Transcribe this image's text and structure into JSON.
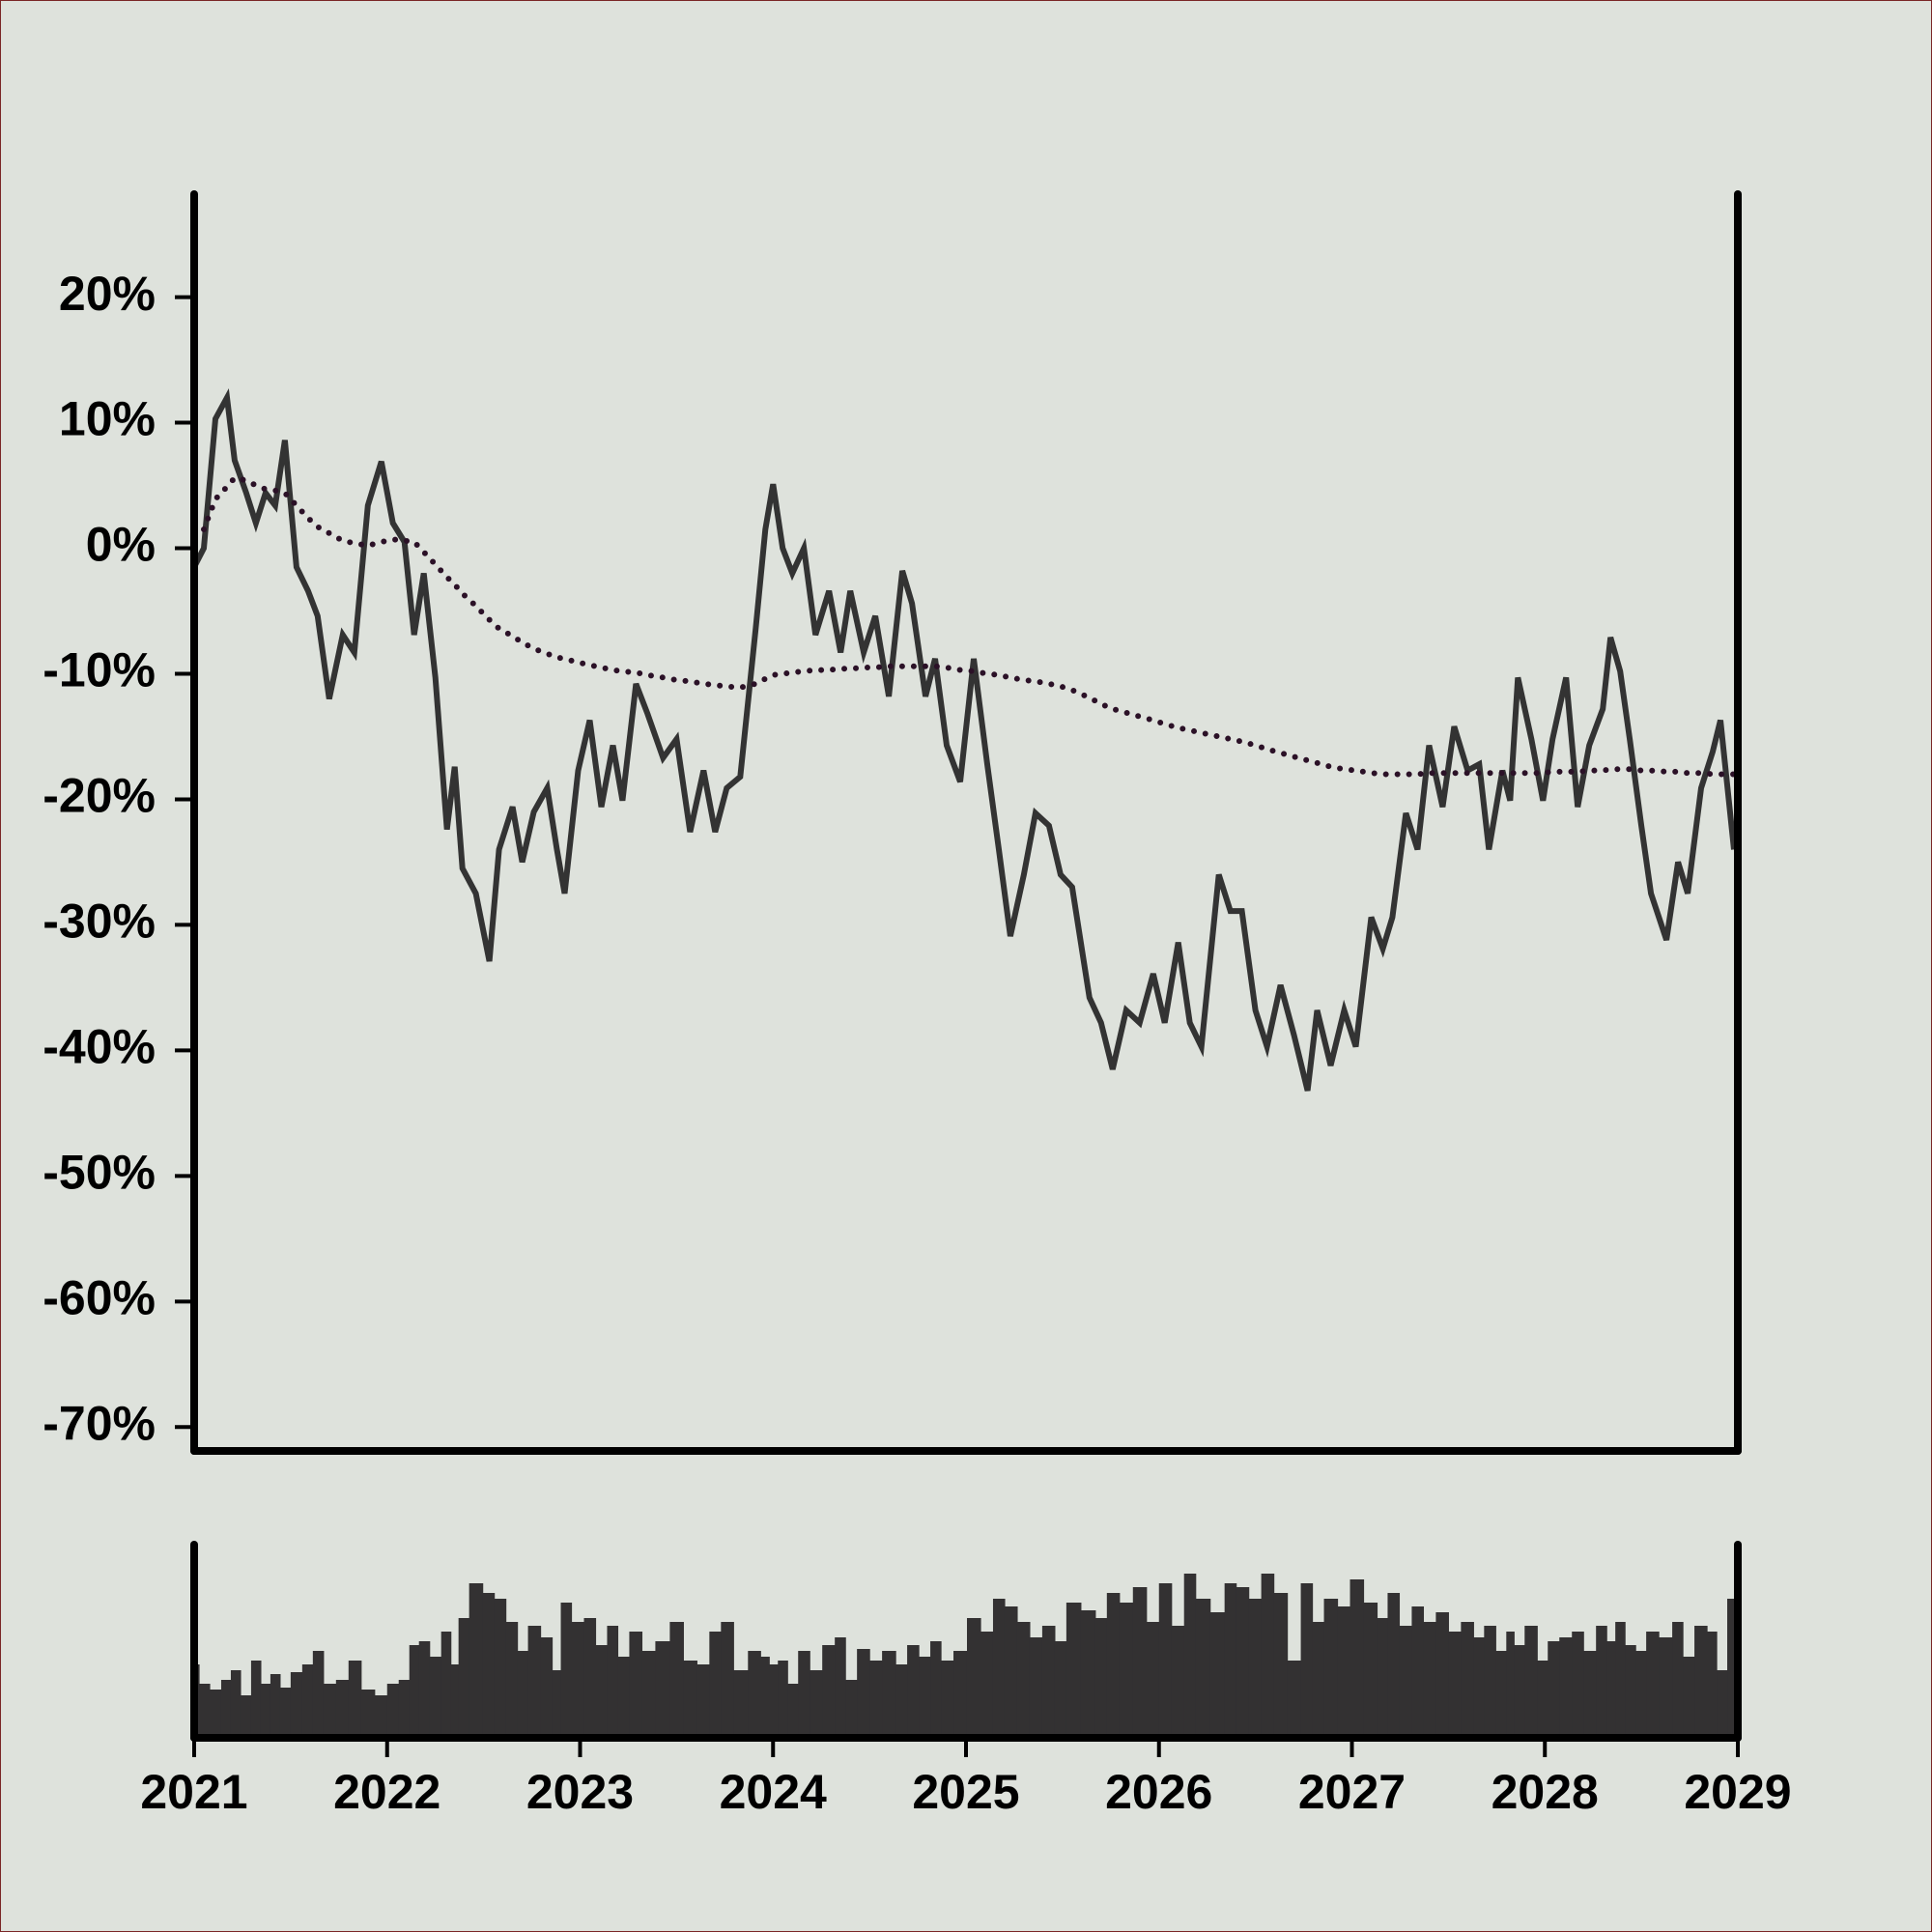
{
  "chart_data": [
    {
      "type": "line",
      "x": [
        2021.0,
        2021.05,
        2021.11,
        2021.17,
        2021.21,
        2021.27,
        2021.32,
        2021.37,
        2021.42,
        2021.47,
        2021.53,
        2021.59,
        2021.64,
        2021.7,
        2021.77,
        2021.83,
        2021.9,
        2021.97,
        2022.03,
        2022.09,
        2022.14,
        2022.19,
        2022.25,
        2022.31,
        2022.35,
        2022.39,
        2022.46,
        2022.53,
        2022.58,
        2022.65,
        2022.7,
        2022.76,
        2022.83,
        2022.88,
        2022.92,
        2022.99,
        2023.05,
        2023.11,
        2023.17,
        2023.22,
        2023.29,
        2023.35,
        2023.43,
        2023.5,
        2023.57,
        2023.64,
        2023.7,
        2023.76,
        2023.83,
        2023.91,
        2023.96,
        2024.0,
        2024.05,
        2024.1,
        2024.16,
        2024.22,
        2024.29,
        2024.35,
        2024.4,
        2024.47,
        2024.53,
        2024.6,
        2024.67,
        2024.72,
        2024.79,
        2024.84,
        2024.9,
        2024.97,
        2025.04,
        2025.11,
        2025.17,
        2025.23,
        2025.3,
        2025.36,
        2025.43,
        2025.49,
        2025.55,
        2025.64,
        2025.7,
        2025.76,
        2025.83,
        2025.9,
        2025.97,
        2026.03,
        2026.1,
        2026.16,
        2026.22,
        2026.31,
        2026.37,
        2026.43,
        2026.5,
        2026.56,
        2026.63,
        2026.7,
        2026.77,
        2026.82,
        2026.89,
        2026.96,
        2027.02,
        2027.1,
        2027.16,
        2027.21,
        2027.28,
        2027.34,
        2027.4,
        2027.47,
        2027.53,
        2027.6,
        2027.66,
        2027.71,
        2027.78,
        2027.82,
        2027.86,
        2027.93,
        2027.99,
        2028.04,
        2028.11,
        2028.17,
        2028.23,
        2028.3,
        2028.34,
        2028.39,
        2028.44,
        2028.5,
        2028.55,
        2028.63,
        2028.69,
        2028.74,
        2028.81,
        2028.87,
        2028.91,
        2028.98
      ],
      "series": [
        {
          "color": "#333333",
          "style": "solid",
          "values": [
            -1.5,
            0,
            10.3,
            12,
            7,
            4.4,
            2,
            4.4,
            3.4,
            8.6,
            -1.5,
            -3.4,
            -5.4,
            -12,
            -6.9,
            -8.3,
            3.4,
            6.9,
            2,
            0.5,
            -6.9,
            -2,
            -10.3,
            -22.4,
            -17.4,
            -25.5,
            -27.5,
            -32.9,
            -24,
            -20.6,
            -25,
            -21,
            -19.1,
            -24,
            -27.5,
            -17.7,
            -13.7,
            -20.6,
            -15.7,
            -20.1,
            -10.8,
            -13.2,
            -16.7,
            -15.2,
            -22.6,
            -17.7,
            -22.6,
            -19.1,
            -18.2,
            -6.4,
            1.5,
            5.1,
            0,
            -2,
            0,
            -6.9,
            -3.4,
            -8.3,
            -3.4,
            -8.3,
            -5.4,
            -11.8,
            -1.8,
            -4.4,
            -11.8,
            -8.8,
            -15.7,
            -18.6,
            -8.8,
            -17.2,
            -24,
            -30.9,
            -26,
            -21.1,
            -22.1,
            -26,
            -27,
            -35.8,
            -37.8,
            -41.5,
            -36.8,
            -37.8,
            -33.9,
            -37.8,
            -31.4,
            -37.8,
            -39.7,
            -26,
            -28.9,
            -28.9,
            -36.8,
            -39.7,
            -34.8,
            -38.8,
            -43.2,
            -36.8,
            -41.2,
            -36.8,
            -39.7,
            -29.4,
            -31.9,
            -29.4,
            -21.1,
            -24,
            -15.7,
            -20.6,
            -14.2,
            -17.7,
            -17.2,
            -24,
            -17.7,
            -20.1,
            -10.3,
            -15.2,
            -20.1,
            -15.2,
            -10.3,
            -20.6,
            -15.7,
            -12.8,
            -7.1,
            -9.8,
            -15.2,
            -22.1,
            -27.5,
            -31.2,
            -25,
            -27.5,
            -19.1,
            -16.2,
            -13.7,
            -24
          ]
        },
        {
          "color": "#2b1127",
          "style": "dotted",
          "values": [
            null,
            1.5,
            3.9,
            4.9,
            5.6,
            5.4,
            5.0,
            4.7,
            4.6,
            4.4,
            3.4,
            2.4,
            1.7,
            1.2,
            0.6,
            0.4,
            0.2,
            0.5,
            0.7,
            0.6,
            0.5,
            -0.3,
            -1.3,
            -2.3,
            -2.9,
            -3.6,
            -4.6,
            -5.7,
            -6.4,
            -7.0,
            -7.5,
            -8.0,
            -8.4,
            -8.7,
            -8.8,
            -9.1,
            -9.3,
            -9.5,
            -9.7,
            -9.8,
            -9.9,
            -10.1,
            -10.3,
            -10.5,
            -10.6,
            -10.8,
            -10.9,
            -11.0,
            -11.1,
            -10.8,
            -10.4,
            -10.1,
            -10.0,
            -9.9,
            -9.8,
            -9.7,
            -9.7,
            -9.6,
            -9.6,
            -9.5,
            -9.5,
            -9.4,
            -9.4,
            -9.4,
            -9.4,
            -9.4,
            -9.5,
            -9.7,
            -9.8,
            -10.0,
            -10.1,
            -10.3,
            -10.5,
            -10.6,
            -10.8,
            -11.0,
            -11.3,
            -11.9,
            -12.4,
            -12.8,
            -13.1,
            -13.4,
            -13.7,
            -14.0,
            -14.3,
            -14.5,
            -14.7,
            -15.0,
            -15.2,
            -15.4,
            -15.7,
            -16.0,
            -16.3,
            -16.6,
            -16.9,
            -17.1,
            -17.4,
            -17.6,
            -17.7,
            -17.9,
            -18.0,
            -18.0,
            -18.0,
            -18.0,
            -17.9,
            -17.9,
            -17.9,
            -17.9,
            -17.9,
            -17.9,
            -17.9,
            -17.9,
            -17.9,
            -17.9,
            -17.9,
            -17.8,
            -17.8,
            -17.8,
            -17.7,
            -17.7,
            -17.6,
            -17.6,
            -17.6,
            -17.7,
            -17.7,
            -17.8,
            -17.8,
            -17.9,
            -17.9,
            -18.0,
            -18.0,
            -18.0
          ]
        }
      ],
      "xlim": [
        2021,
        2029
      ],
      "ylim": [
        -71.9,
        28.2
      ],
      "yticks": [
        {
          "value": 20,
          "label": "20%"
        },
        {
          "value": 10,
          "label": "10%"
        },
        {
          "value": 0,
          "label": "0%"
        },
        {
          "value": -10,
          "label": "-10%"
        },
        {
          "value": -20,
          "label": "-20%"
        },
        {
          "value": -30,
          "label": "-30%"
        },
        {
          "value": -40,
          "label": "-40%"
        },
        {
          "value": -50,
          "label": "-50%"
        },
        {
          "value": -60,
          "label": "-60%"
        },
        {
          "value": -70,
          "label": "-70%"
        }
      ],
      "grid": false
    },
    {
      "type": "bar",
      "x": [
        2021.0,
        2021.05,
        2021.11,
        2021.17,
        2021.21,
        2021.27,
        2021.32,
        2021.37,
        2021.42,
        2021.47,
        2021.53,
        2021.59,
        2021.64,
        2021.7,
        2021.77,
        2021.83,
        2021.9,
        2021.97,
        2022.03,
        2022.09,
        2022.14,
        2022.19,
        2022.25,
        2022.31,
        2022.35,
        2022.39,
        2022.46,
        2022.53,
        2022.58,
        2022.65,
        2022.7,
        2022.76,
        2022.83,
        2022.88,
        2022.92,
        2022.99,
        2023.05,
        2023.11,
        2023.17,
        2023.22,
        2023.29,
        2023.35,
        2023.43,
        2023.5,
        2023.57,
        2023.64,
        2023.7,
        2023.76,
        2023.83,
        2023.91,
        2023.96,
        2024.0,
        2024.05,
        2024.1,
        2024.16,
        2024.22,
        2024.29,
        2024.35,
        2024.4,
        2024.47,
        2024.53,
        2024.6,
        2024.67,
        2024.72,
        2024.79,
        2024.84,
        2024.9,
        2024.97,
        2025.04,
        2025.11,
        2025.17,
        2025.23,
        2025.3,
        2025.36,
        2025.43,
        2025.49,
        2025.55,
        2025.64,
        2025.7,
        2025.76,
        2025.83,
        2025.9,
        2025.97,
        2026.03,
        2026.1,
        2026.16,
        2026.22,
        2026.31,
        2026.37,
        2026.43,
        2026.5,
        2026.56,
        2026.63,
        2026.7,
        2026.77,
        2026.82,
        2026.89,
        2026.96,
        2027.02,
        2027.1,
        2027.16,
        2027.21,
        2027.28,
        2027.34,
        2027.4,
        2027.47,
        2027.53,
        2027.6,
        2027.66,
        2027.71,
        2027.78,
        2027.82,
        2027.86,
        2027.93,
        2027.99,
        2028.04,
        2028.11,
        2028.17,
        2028.23,
        2028.3,
        2028.34,
        2028.39,
        2028.44,
        2028.5,
        2028.55,
        2028.63,
        2028.69,
        2028.74,
        2028.81,
        2028.87,
        2028.91,
        2028.98
      ],
      "values": [
        38,
        28,
        25,
        30,
        35,
        22,
        40,
        28,
        33,
        26,
        34,
        38,
        45,
        28,
        30,
        40,
        25,
        22,
        28,
        30,
        48,
        50,
        42,
        55,
        38,
        62,
        80,
        75,
        72,
        60,
        45,
        58,
        52,
        35,
        70,
        60,
        62,
        48,
        58,
        42,
        55,
        45,
        50,
        60,
        40,
        38,
        55,
        60,
        35,
        45,
        42,
        38,
        40,
        28,
        45,
        35,
        48,
        52,
        30,
        46,
        40,
        45,
        38,
        48,
        42,
        50,
        40,
        45,
        62,
        55,
        72,
        68,
        60,
        52,
        58,
        50,
        70,
        66,
        62,
        75,
        70,
        78,
        60,
        80,
        58,
        85,
        72,
        65,
        80,
        78,
        72,
        85,
        75,
        40,
        80,
        60,
        72,
        68,
        82,
        70,
        62,
        75,
        58,
        68,
        60,
        65,
        55,
        60,
        52,
        58,
        45,
        55,
        48,
        58,
        40,
        50,
        52,
        55,
        45,
        58,
        50,
        60,
        48,
        45,
        55,
        52,
        60,
        42,
        58,
        55,
        35,
        72
      ],
      "color": "#333132",
      "xlim": [
        2021,
        2029
      ],
      "ylim": [
        0,
        100
      ],
      "xticks": [
        2021,
        2022,
        2023,
        2024,
        2025,
        2026,
        2027,
        2028,
        2029
      ]
    }
  ]
}
